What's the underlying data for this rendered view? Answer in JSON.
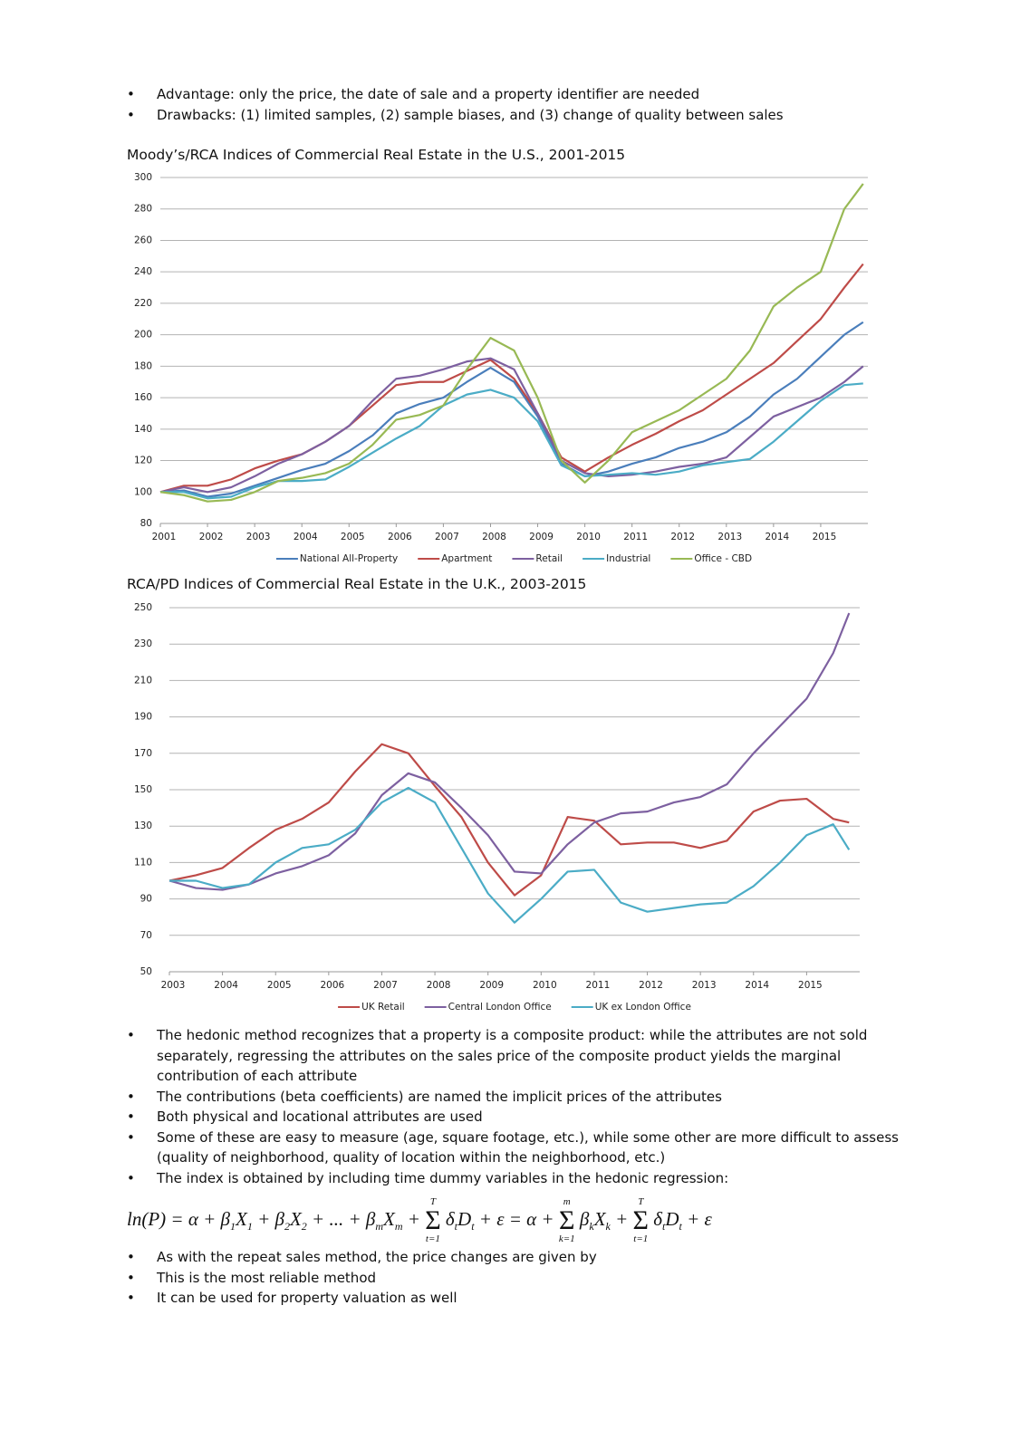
{
  "bullets_top": [
    "Advantage: only the price, the date of sale and a property identifier are needed",
    "Drawbacks: (1) limited samples, (2) sample biases, and (3) change of quality between sales"
  ],
  "chart_data": [
    {
      "type": "line",
      "title": "Moody’s/RCA Indices of Commercial Real Estate in the U.S., 2001-2015",
      "x": [
        2001,
        2001.5,
        2002,
        2002.5,
        2003,
        2003.5,
        2004,
        2004.5,
        2005,
        2005.5,
        2006,
        2006.5,
        2007,
        2007.5,
        2008,
        2008.5,
        2009,
        2009.5,
        2010,
        2010.5,
        2011,
        2011.5,
        2012,
        2012.5,
        2013,
        2013.5,
        2014,
        2014.5,
        2015,
        2015.5,
        2015.9
      ],
      "xlim": [
        2001,
        2016
      ],
      "xticks": [
        2001,
        2002,
        2003,
        2004,
        2005,
        2006,
        2007,
        2008,
        2009,
        2010,
        2011,
        2012,
        2013,
        2014,
        2015
      ],
      "ylim": [
        80,
        300
      ],
      "yticks": [
        80,
        100,
        120,
        140,
        160,
        180,
        200,
        220,
        240,
        260,
        280,
        300
      ],
      "grid": true,
      "legend": "bottom",
      "series": [
        {
          "name": "National All-Property",
          "color": "#4a7ebb",
          "values": [
            100,
            101,
            97,
            99,
            104,
            109,
            114,
            118,
            126,
            136,
            150,
            156,
            160,
            170,
            179,
            170,
            148,
            118,
            110,
            113,
            118,
            122,
            128,
            132,
            138,
            148,
            162,
            172,
            186,
            200,
            208
          ]
        },
        {
          "name": "Apartment",
          "color": "#be4b48",
          "values": [
            100,
            104,
            104,
            108,
            115,
            120,
            124,
            132,
            142,
            155,
            168,
            170,
            170,
            177,
            184,
            172,
            150,
            122,
            113,
            122,
            130,
            137,
            145,
            152,
            162,
            172,
            182,
            196,
            210,
            230,
            245
          ]
        },
        {
          "name": "Retail",
          "color": "#7d60a0",
          "values": [
            100,
            103,
            100,
            103,
            110,
            118,
            124,
            132,
            142,
            158,
            172,
            174,
            178,
            183,
            185,
            178,
            150,
            120,
            112,
            110,
            111,
            113,
            116,
            118,
            122,
            135,
            148,
            154,
            160,
            170,
            180
          ]
        },
        {
          "name": "Industrial",
          "color": "#4bacc6",
          "values": [
            100,
            100,
            96,
            97,
            103,
            107,
            107,
            108,
            116,
            125,
            134,
            142,
            155,
            162,
            165,
            160,
            145,
            117,
            110,
            111,
            112,
            111,
            113,
            117,
            119,
            121,
            132,
            145,
            158,
            168,
            169
          ]
        },
        {
          "name": "Office - CBD",
          "color": "#98b954",
          "values": [
            100,
            98,
            94,
            95,
            100,
            107,
            109,
            112,
            118,
            130,
            146,
            149,
            155,
            178,
            198,
            190,
            160,
            120,
            106,
            120,
            138,
            145,
            152,
            162,
            172,
            190,
            218,
            230,
            240,
            280,
            296
          ]
        }
      ]
    },
    {
      "type": "line",
      "title": "RCA/PD Indices of Commercial Real Estate in the U.K., 2003-2015",
      "x": [
        2003,
        2003.5,
        2004,
        2004.5,
        2005,
        2005.5,
        2006,
        2006.5,
        2007,
        2007.5,
        2008,
        2008.5,
        2009,
        2009.5,
        2010,
        2010.5,
        2011,
        2011.5,
        2012,
        2012.5,
        2013,
        2013.5,
        2014,
        2014.5,
        2015,
        2015.5,
        2015.8
      ],
      "xlim": [
        2003,
        2016
      ],
      "xticks": [
        2003,
        2004,
        2005,
        2006,
        2007,
        2008,
        2009,
        2010,
        2011,
        2012,
        2013,
        2014,
        2015
      ],
      "ylim": [
        50,
        250
      ],
      "yticks": [
        50,
        70,
        90,
        110,
        130,
        150,
        170,
        190,
        210,
        230,
        250
      ],
      "grid": true,
      "legend": "bottom",
      "series": [
        {
          "name": "UK Retail",
          "color": "#be4b48",
          "values": [
            100,
            103,
            107,
            118,
            128,
            134,
            143,
            160,
            175,
            170,
            152,
            135,
            110,
            92,
            103,
            135,
            133,
            120,
            121,
            121,
            118,
            122,
            138,
            144,
            145,
            134,
            132
          ]
        },
        {
          "name": "Central London Office",
          "color": "#7d60a0",
          "values": [
            100,
            96,
            95,
            98,
            104,
            108,
            114,
            126,
            147,
            159,
            154,
            140,
            125,
            105,
            104,
            120,
            132,
            137,
            138,
            143,
            146,
            153,
            170,
            185,
            200,
            225,
            247
          ]
        },
        {
          "name": "UK ex London Office",
          "color": "#4bacc6",
          "values": [
            100,
            100,
            96,
            98,
            110,
            118,
            120,
            128,
            143,
            151,
            143,
            118,
            93,
            77,
            90,
            105,
            106,
            88,
            83,
            85,
            87,
            88,
            97,
            110,
            125,
            131,
            117
          ]
        }
      ]
    }
  ],
  "bullets_bottom": [
    "The hedonic method recognizes that a property is a composite product: while the attributes are not sold separately, regressing the attributes on the sales price of the composite product yields the marginal contribution of each attribute",
    "The contributions (beta coefficients) are named the implicit prices of the attributes",
    "Both physical and locational attributes are used",
    "Some of these are easy to measure (age, square footage, etc.), while some other are more difficult to assess (quality of neighborhood, quality of location within the neighborhood, etc.)",
    "The index is obtained by including time dummy variables in the hedonic regression:"
  ],
  "formula": [
    {
      "text": "ln(P) = α + β"
    },
    {
      "sub": "1"
    },
    {
      "text": "X"
    },
    {
      "sub": "1"
    },
    {
      "text": " + β"
    },
    {
      "sub": "2"
    },
    {
      "text": "X"
    },
    {
      "sub": "2"
    },
    {
      "text": " + ... + β"
    },
    {
      "sub": "m"
    },
    {
      "text": "X"
    },
    {
      "sub": "m"
    },
    {
      "text": " + "
    },
    {
      "sum": "Σ",
      "over": "T",
      "under": "t=1"
    },
    {
      "text": " δ"
    },
    {
      "sub": "t"
    },
    {
      "text": "D"
    },
    {
      "sub": "t"
    },
    {
      "text": " + ε = α + "
    },
    {
      "sum": "Σ",
      "over": "m",
      "under": "k=1"
    },
    {
      "text": " β"
    },
    {
      "sub": "k"
    },
    {
      "text": "X"
    },
    {
      "sub": "k"
    },
    {
      "text": " + "
    },
    {
      "sum": "Σ",
      "over": "T",
      "under": "t=1"
    },
    {
      "text": " δ"
    },
    {
      "sub": "t"
    },
    {
      "text": "D"
    },
    {
      "sub": "t"
    },
    {
      "text": " + ε"
    }
  ],
  "bullets_end": [
    "As with the repeat sales method, the price changes are given by",
    "This is the most reliable method",
    "It can be used for property valuation as well"
  ]
}
